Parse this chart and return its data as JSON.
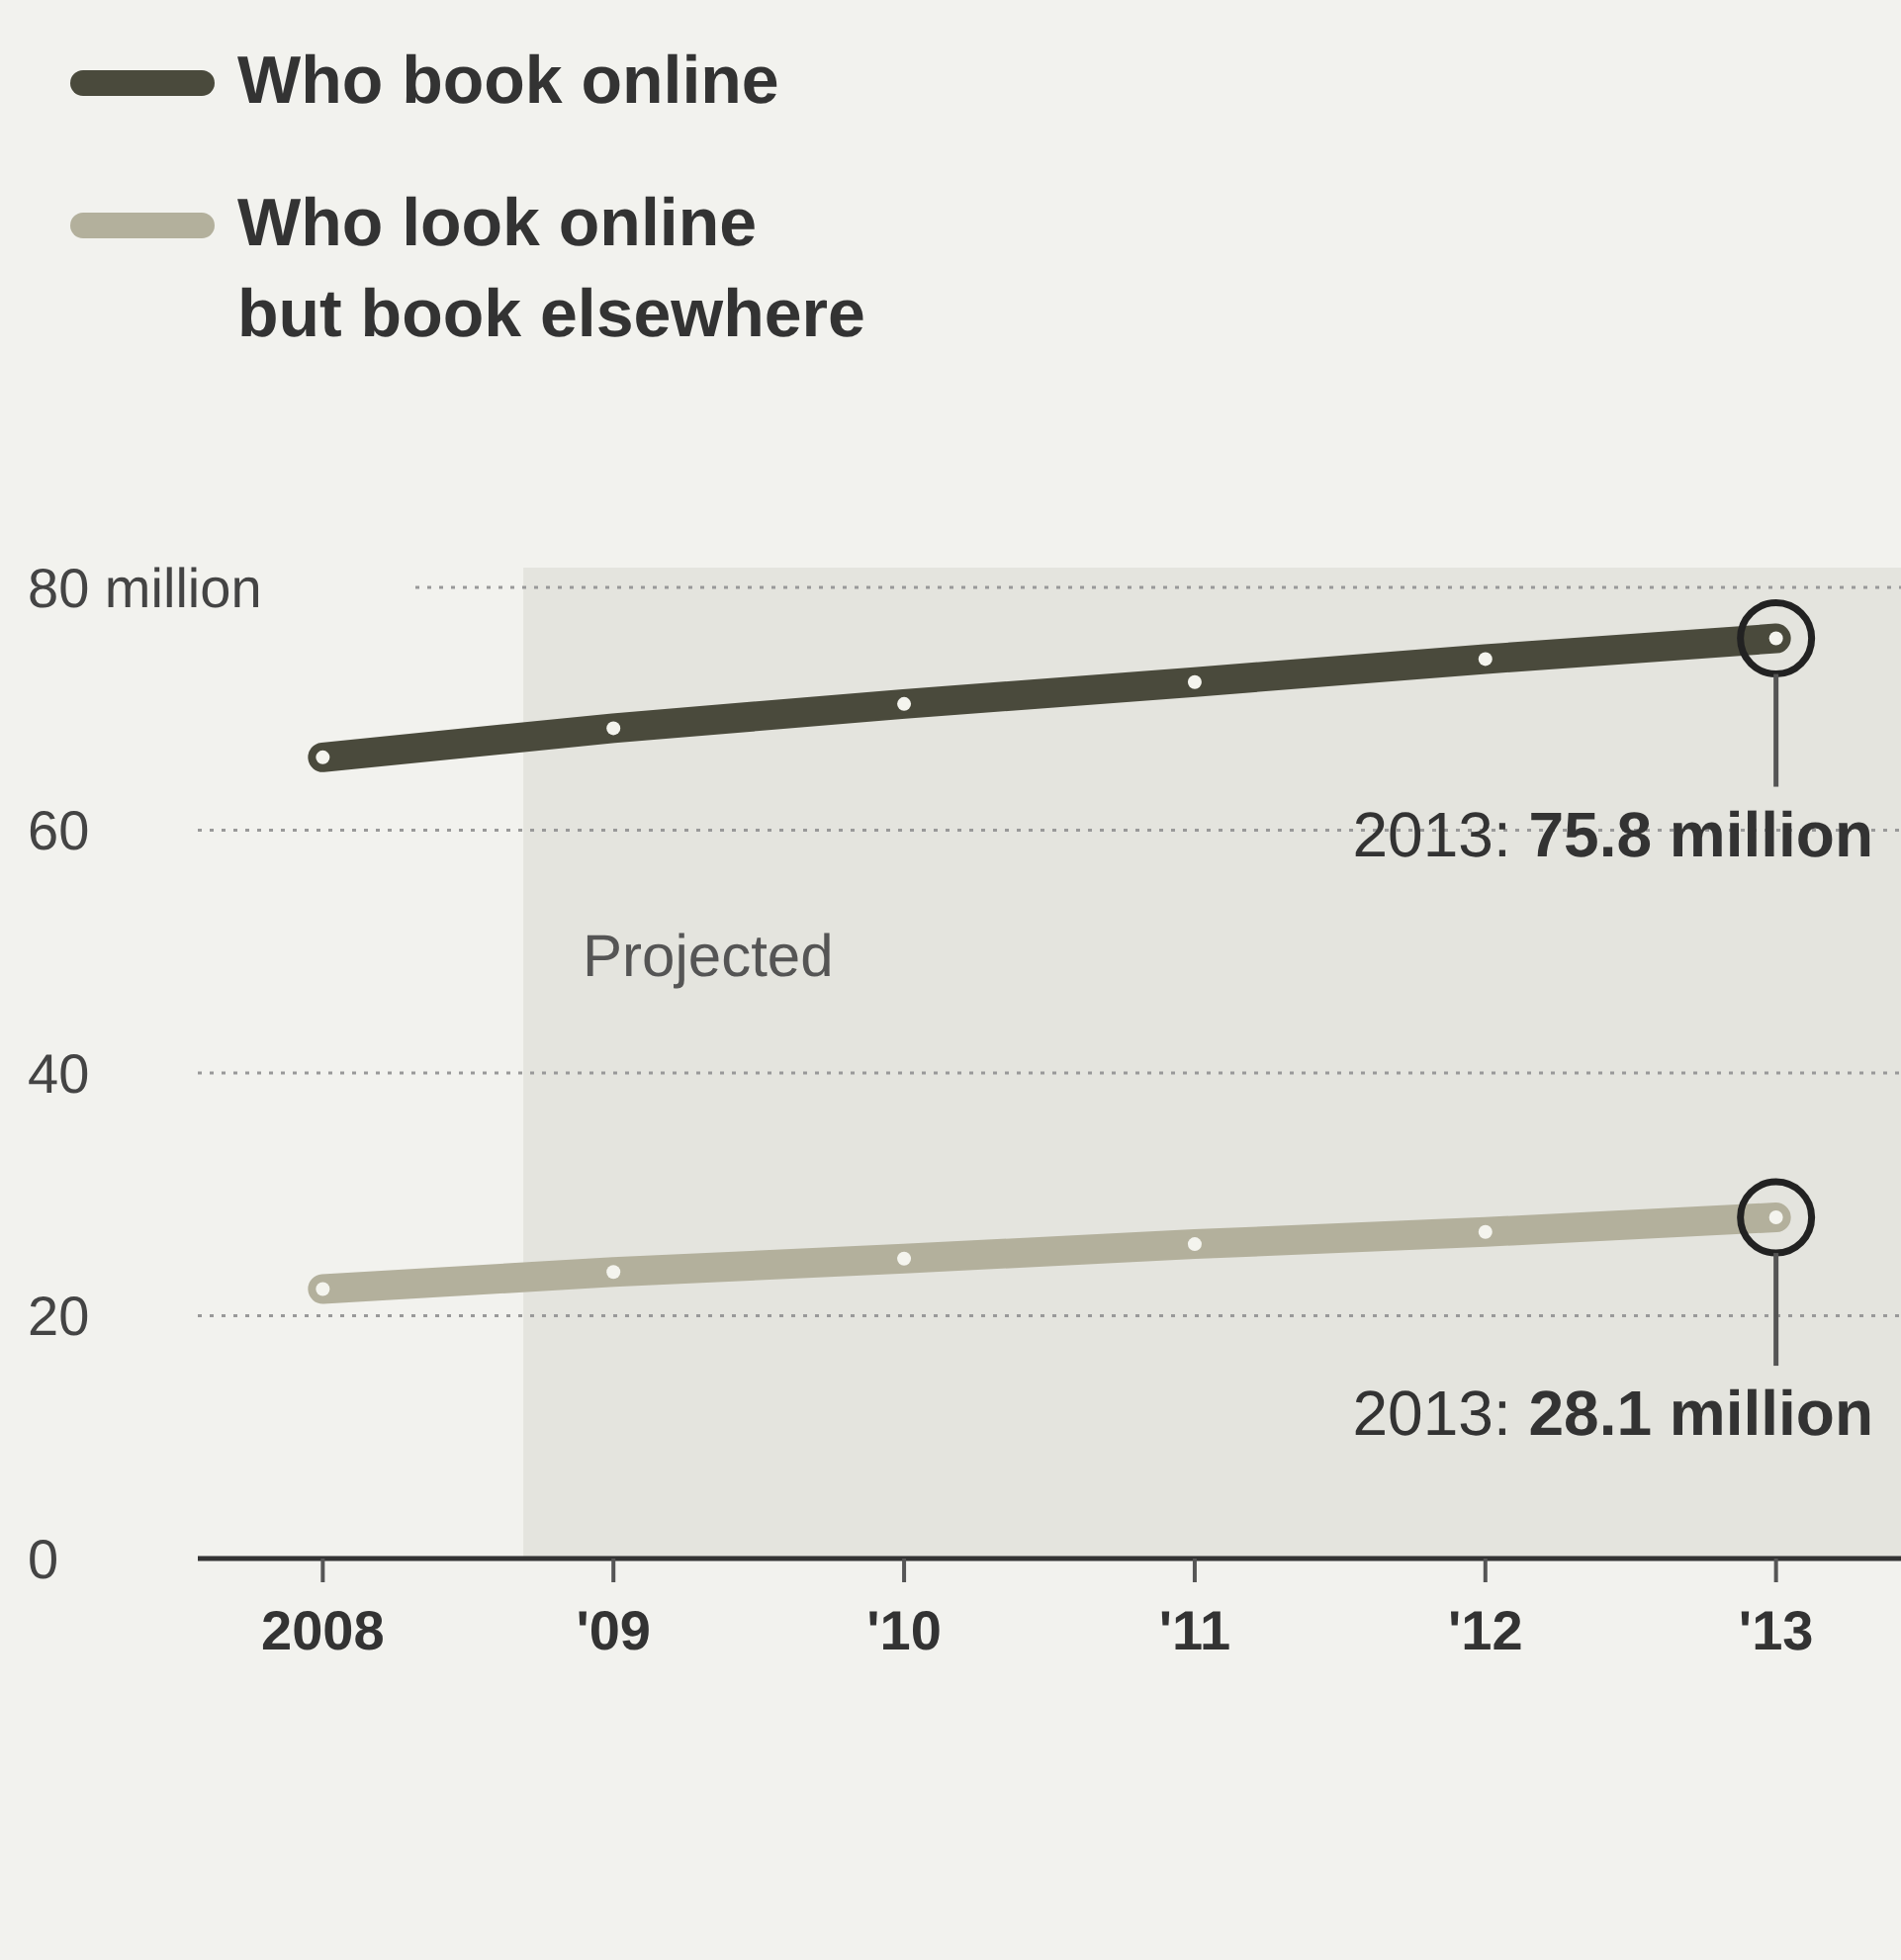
{
  "chart_data": {
    "type": "line",
    "x": [
      2008,
      2009,
      2010,
      2011,
      2012,
      2013
    ],
    "series": [
      {
        "name": "Who book online",
        "color": "#4a4a3c",
        "values": [
          66,
          68.4,
          70.4,
          72.2,
          74.1,
          75.8
        ]
      },
      {
        "name": "Who look online but book elsewhere",
        "color": "#b3b09c",
        "values": [
          22.2,
          23.6,
          24.7,
          25.9,
          26.9,
          28.1
        ]
      }
    ],
    "xlim": [
      2007.57,
      2013.43
    ],
    "xticks": [
      {
        "value": 2008,
        "label": "2008"
      },
      {
        "value": 2009,
        "label": "'09"
      },
      {
        "value": 2010,
        "label": "'10"
      },
      {
        "value": 2011,
        "label": "'11"
      },
      {
        "value": 2012,
        "label": "'12"
      },
      {
        "value": 2013,
        "label": "'13"
      }
    ],
    "ylim": [
      0,
      80
    ],
    "yticks": [
      0,
      20,
      40,
      {
        "value": 60,
        "label": "60"
      },
      {
        "value": 80,
        "label": "80 million"
      }
    ],
    "grid": "y",
    "legend": "top left",
    "marker": "circle",
    "line_style": "solid",
    "bands": [
      {
        "axis": "x",
        "from": 2008.69,
        "to": 2013.43,
        "label": "Projected",
        "color": "#e4e4de"
      }
    ],
    "annotations": [
      {
        "text": "2013: 75.8 million",
        "x": 2013,
        "y": 75.8
      },
      {
        "text": "2013: 28.1 million",
        "x": 2013,
        "y": 28.1
      }
    ]
  }
}
